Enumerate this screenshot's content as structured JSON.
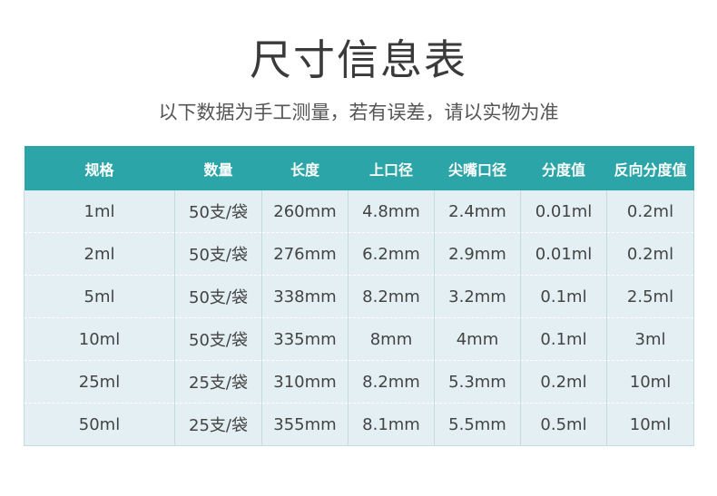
{
  "title": "尺寸信息表",
  "subtitle": "以下数据为手工测量，若有误差，请以实物为准",
  "colors": {
    "header": "#2ba5a7",
    "body": "#e3eff2"
  },
  "table": {
    "headers": [
      "规格",
      "数量",
      "长度",
      "上口径",
      "尖嘴口径",
      "分度值",
      "反向分度值"
    ],
    "rows": [
      [
        "1ml",
        "50支/袋",
        "260mm",
        "4.8mm",
        "2.4mm",
        "0.01ml",
        "0.2ml"
      ],
      [
        "2ml",
        "50支/袋",
        "276mm",
        "6.2mm",
        "2.9mm",
        "0.01ml",
        "0.2ml"
      ],
      [
        "5ml",
        "50支/袋",
        "338mm",
        "8.2mm",
        "3.2mm",
        "0.1ml",
        "2.5ml"
      ],
      [
        "10ml",
        "50支/袋",
        "335mm",
        "8mm",
        "4mm",
        "0.1ml",
        "3ml"
      ],
      [
        "25ml",
        "25支/袋",
        "310mm",
        "8.2mm",
        "5.3mm",
        "0.2ml",
        "10ml"
      ],
      [
        "50ml",
        "25支/袋",
        "355mm",
        "8.1mm",
        "5.5mm",
        "0.5ml",
        "10ml"
      ]
    ]
  }
}
